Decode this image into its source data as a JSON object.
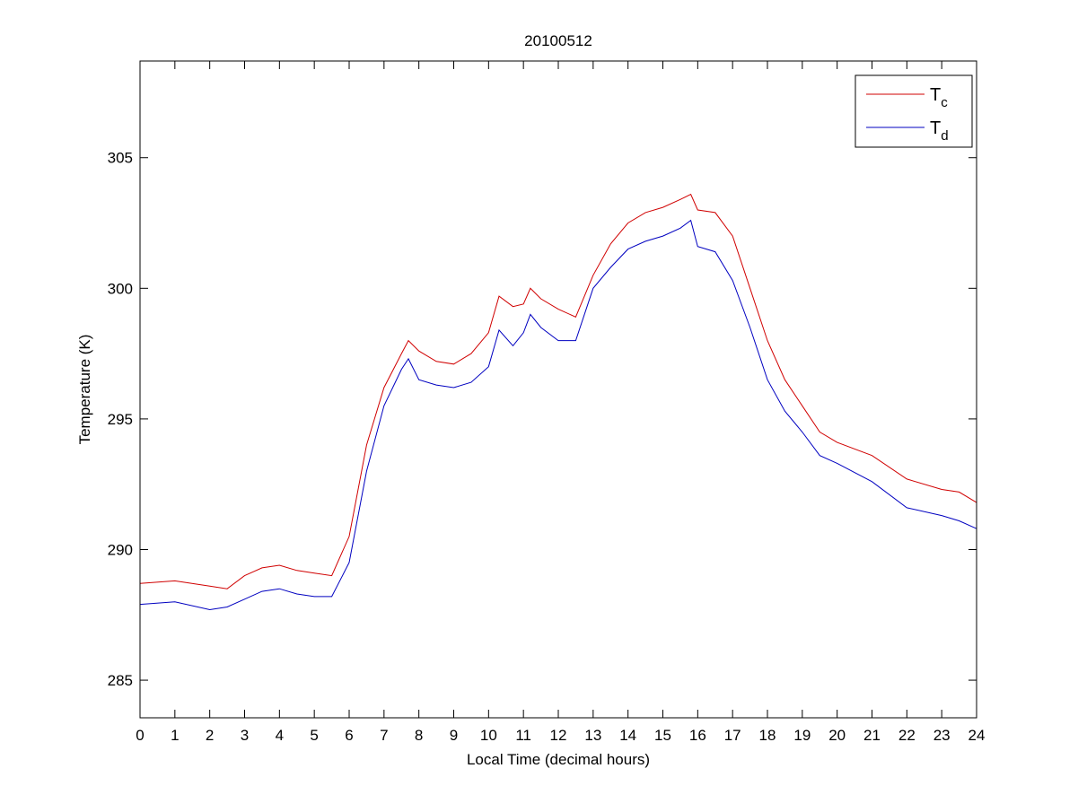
{
  "chart_data": {
    "type": "line",
    "title": "20100512",
    "xlabel": "Local Time (decimal hours)",
    "ylabel": "Temperature (K)",
    "xlim": [
      0,
      24
    ],
    "ylim": [
      283.56,
      308.7
    ],
    "xticks": [
      0,
      1,
      2,
      3,
      4,
      5,
      6,
      7,
      8,
      9,
      10,
      11,
      12,
      13,
      14,
      15,
      16,
      17,
      18,
      19,
      20,
      21,
      22,
      23,
      24
    ],
    "yticks": [
      285,
      290,
      295,
      300,
      305
    ],
    "grid": false,
    "legend_position": "top-right",
    "series": [
      {
        "name": "T_c",
        "label_main": "T",
        "label_sub": "c",
        "color": "#d00000",
        "x": [
          0,
          1,
          2,
          2.5,
          3,
          3.5,
          4,
          4.5,
          5,
          5.5,
          6,
          6.5,
          7,
          7.5,
          7.7,
          8,
          8.5,
          9,
          9.5,
          10,
          10.3,
          10.7,
          11,
          11.2,
          11.5,
          12,
          12.5,
          13,
          13.5,
          14,
          14.5,
          15,
          15.5,
          15.8,
          16,
          16.5,
          17,
          17.5,
          18,
          18.5,
          19,
          19.5,
          20,
          21,
          22,
          23,
          23.5,
          24
        ],
        "values": [
          288.7,
          288.8,
          288.6,
          288.5,
          289.0,
          289.3,
          289.4,
          289.2,
          289.1,
          289.0,
          290.5,
          294.0,
          296.2,
          297.5,
          298.0,
          297.6,
          297.2,
          297.1,
          297.5,
          298.3,
          299.7,
          299.3,
          299.4,
          300.0,
          299.6,
          299.2,
          298.9,
          300.5,
          301.7,
          302.5,
          302.9,
          303.1,
          303.4,
          303.6,
          303.0,
          302.9,
          302.0,
          300.0,
          298.0,
          296.5,
          295.5,
          294.5,
          294.1,
          293.6,
          292.7,
          292.3,
          292.2,
          291.8
        ]
      },
      {
        "name": "T_d",
        "label_main": "T",
        "label_sub": "d",
        "color": "#0000c0",
        "x": [
          0,
          1,
          2,
          2.5,
          3,
          3.5,
          4,
          4.5,
          5,
          5.5,
          6,
          6.5,
          7,
          7.5,
          7.7,
          8,
          8.5,
          9,
          9.5,
          10,
          10.3,
          10.7,
          11,
          11.2,
          11.5,
          12,
          12.5,
          13,
          13.5,
          14,
          14.5,
          15,
          15.5,
          15.8,
          16,
          16.5,
          17,
          17.5,
          18,
          18.5,
          19,
          19.5,
          20,
          21,
          22,
          23,
          23.5,
          24
        ],
        "values": [
          287.9,
          288.0,
          287.7,
          287.8,
          288.1,
          288.4,
          288.5,
          288.3,
          288.2,
          288.2,
          289.5,
          293.0,
          295.5,
          296.9,
          297.3,
          296.5,
          296.3,
          296.2,
          296.4,
          297.0,
          298.4,
          297.8,
          298.3,
          299.0,
          298.5,
          298.0,
          298.0,
          300.0,
          300.8,
          301.5,
          301.8,
          302.0,
          302.3,
          302.6,
          301.6,
          301.4,
          300.3,
          298.5,
          296.5,
          295.3,
          294.5,
          293.6,
          293.3,
          292.6,
          291.6,
          291.3,
          291.1,
          290.8
        ]
      }
    ]
  }
}
